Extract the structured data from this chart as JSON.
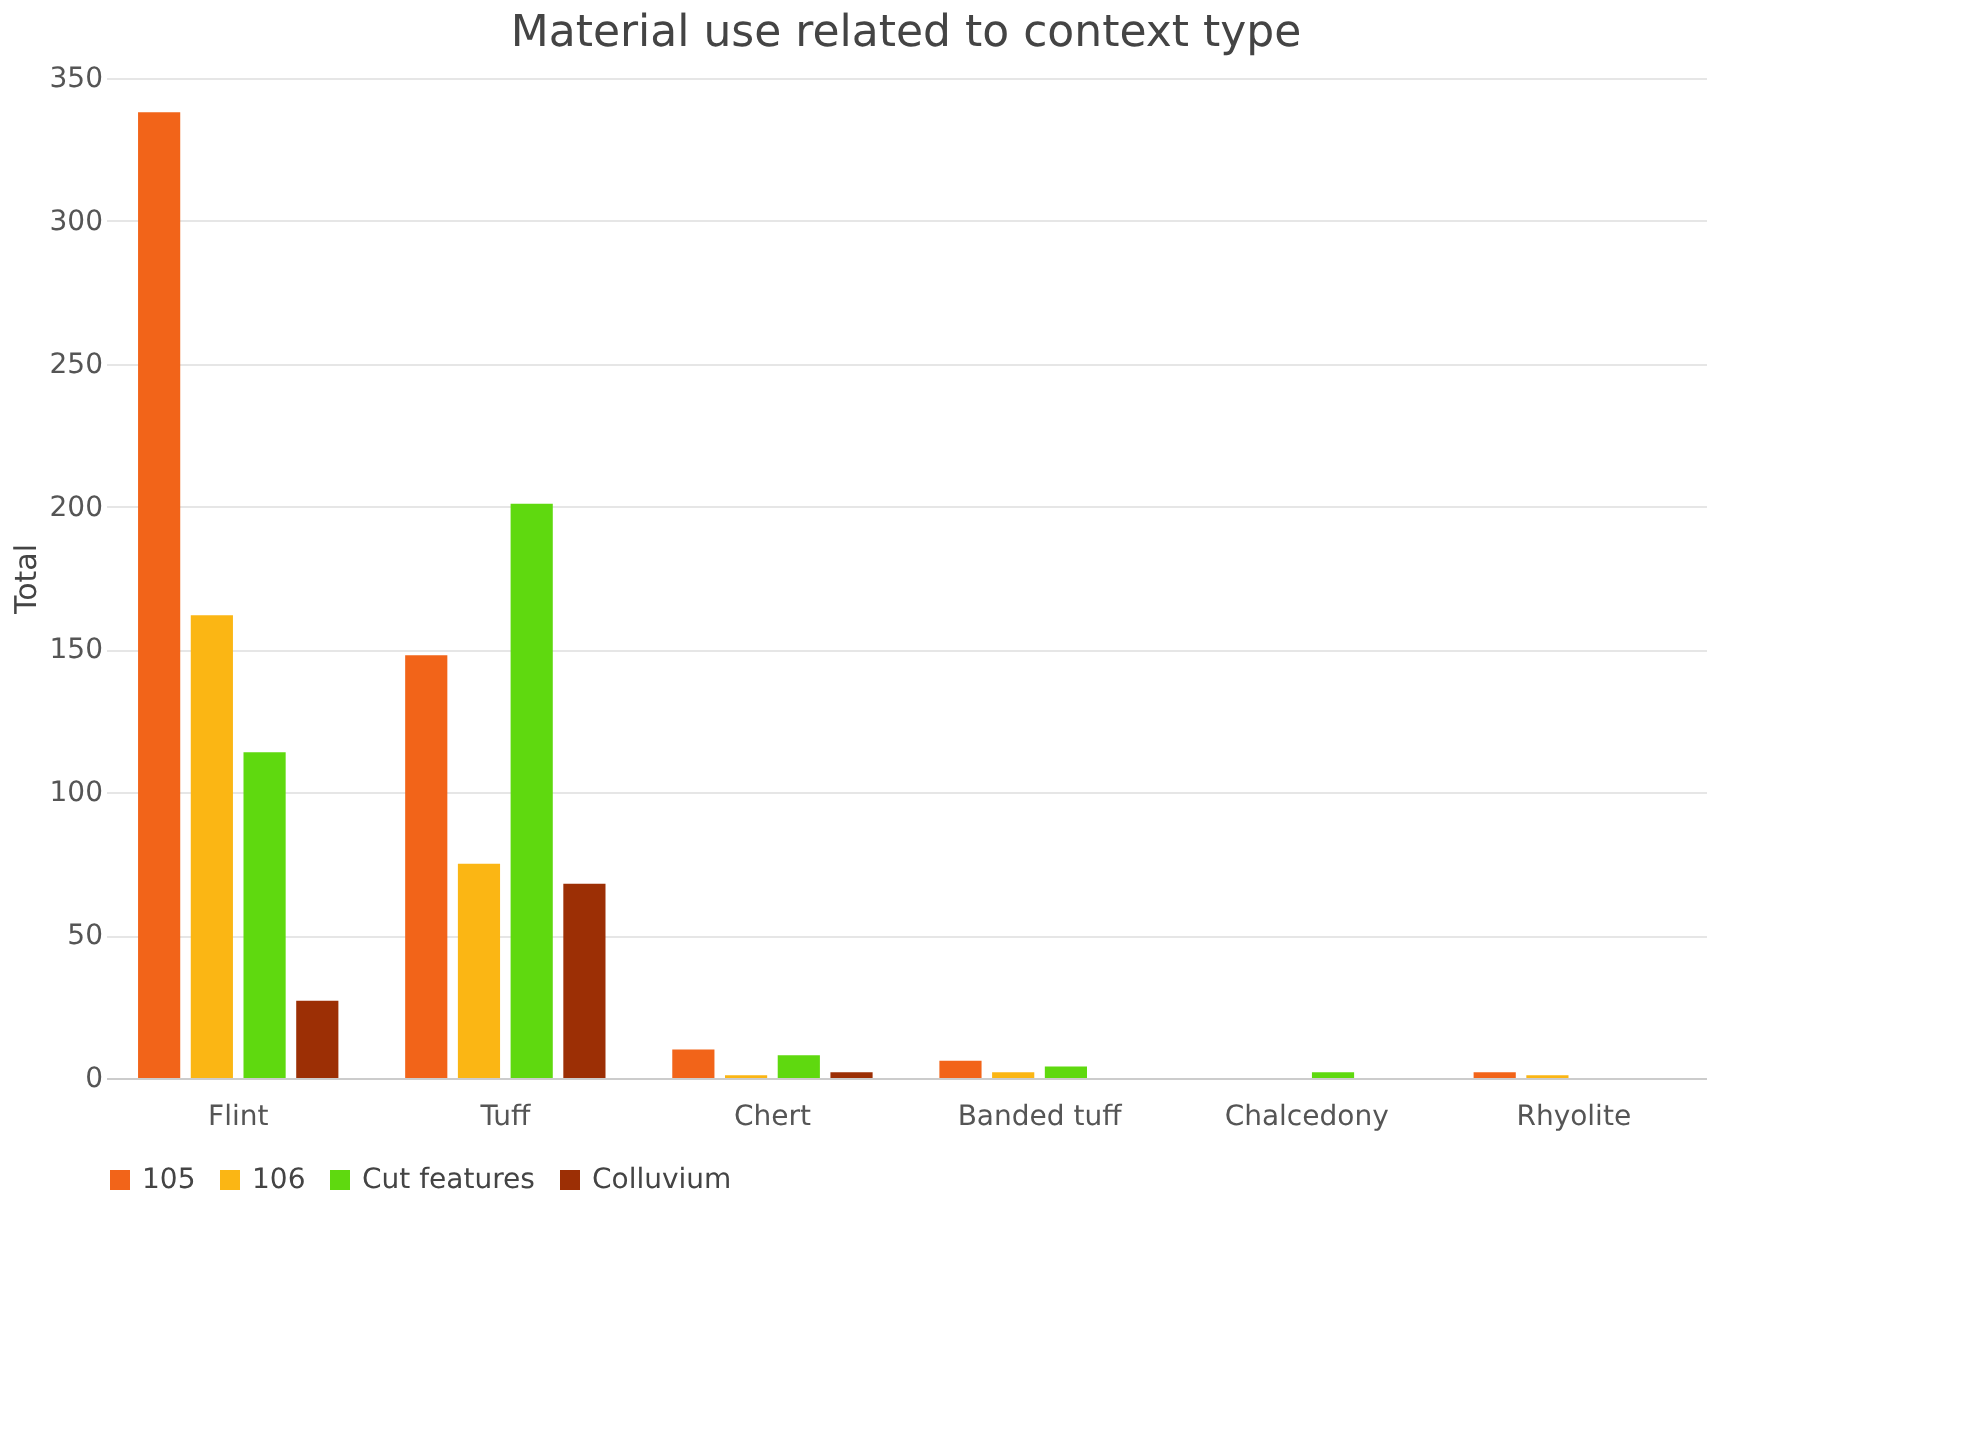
{
  "chart_data": {
    "type": "bar",
    "title": "Material use related to context type",
    "ylabel": "Total",
    "categories": [
      "Flint",
      "Tuff",
      "Chert",
      "Banded tuff",
      "Chalcedony",
      "Rhyolite"
    ],
    "series": [
      {
        "name": "105",
        "color": "#f26419",
        "values": [
          338,
          148,
          10,
          6,
          0,
          2
        ]
      },
      {
        "name": "106",
        "color": "#fbb614",
        "values": [
          162,
          75,
          1,
          2,
          0,
          1
        ]
      },
      {
        "name": "Cut features",
        "color": "#5fd90f",
        "values": [
          114,
          201,
          8,
          4,
          2,
          0
        ]
      },
      {
        "name": "Colluvium",
        "color": "#9c2f05",
        "values": [
          27,
          68,
          2,
          0,
          0,
          0
        ]
      }
    ],
    "ylim": [
      0,
      350
    ],
    "yticks": [
      0,
      50,
      100,
      150,
      200,
      250,
      300,
      350
    ],
    "grid": "y",
    "legend": "bottom"
  }
}
